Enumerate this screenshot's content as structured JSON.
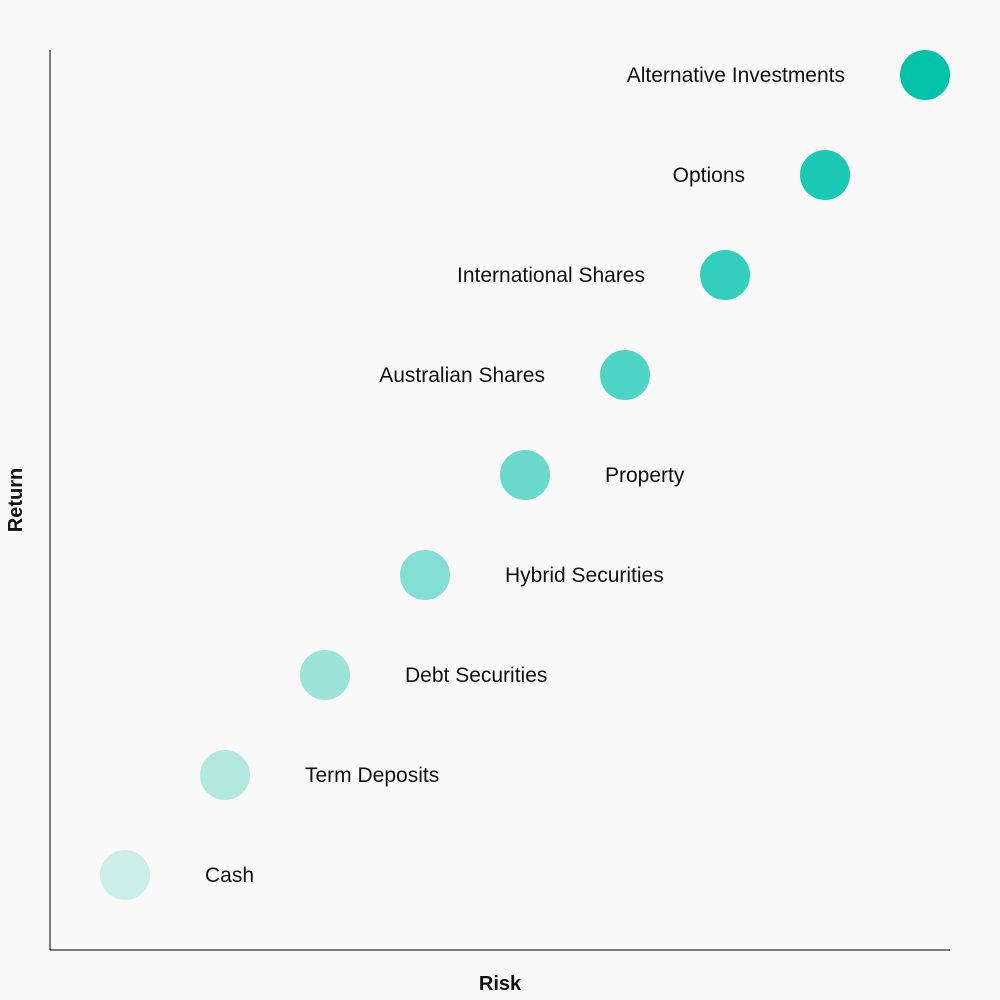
{
  "chart_data": {
    "type": "scatter",
    "title": "",
    "xlabel": "Risk",
    "ylabel": "Return",
    "xlim": [
      0,
      9
    ],
    "ylim": [
      0,
      9
    ],
    "grid": false,
    "legend": "none",
    "points": [
      {
        "label": "Cash",
        "x": 0.75,
        "y": 0.75,
        "label_side": "right",
        "color": "#cbeee9"
      },
      {
        "label": "Term Deposits",
        "x": 1.75,
        "y": 1.75,
        "label_side": "right",
        "color": "#b3e8e1"
      },
      {
        "label": "Debt Securities",
        "x": 2.75,
        "y": 2.75,
        "label_side": "right",
        "color": "#9ce3da"
      },
      {
        "label": "Hybrid Securities",
        "x": 3.75,
        "y": 3.75,
        "label_side": "right",
        "color": "#83ded3"
      },
      {
        "label": "Property",
        "x": 4.75,
        "y": 4.75,
        "label_side": "right",
        "color": "#68d9cc"
      },
      {
        "label": "Australian Shares",
        "x": 5.75,
        "y": 5.75,
        "label_side": "left",
        "color": "#4dd4c4"
      },
      {
        "label": "International Shares",
        "x": 6.75,
        "y": 6.75,
        "label_side": "left",
        "color": "#33cebc"
      },
      {
        "label": "Options",
        "x": 7.75,
        "y": 7.75,
        "label_side": "left",
        "color": "#1ac9b3"
      },
      {
        "label": "Alternative Investments",
        "x": 8.75,
        "y": 8.75,
        "label_side": "left",
        "color": "#00c3aa"
      }
    ]
  }
}
